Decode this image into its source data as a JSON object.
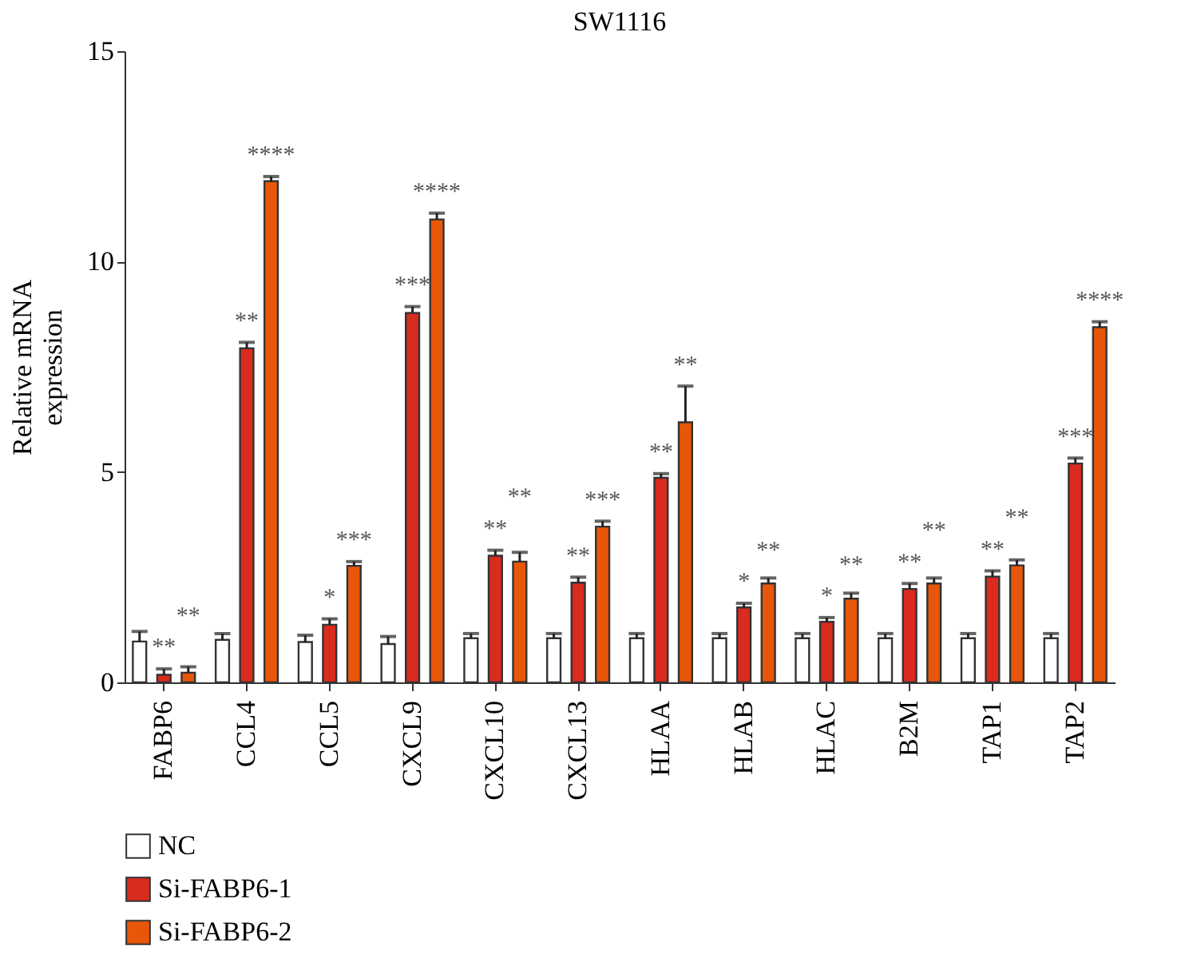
{
  "chart_data": {
    "type": "bar",
    "title": "SW1116",
    "ylabel": "Relative mRNA expression",
    "categories": [
      "FABP6",
      "CCL4",
      "CCL5",
      "CXCL9",
      "CXCL10",
      "CXCL13",
      "HLAA",
      "HLAB",
      "HLAC",
      "B2M",
      "TAP1",
      "TAP2"
    ],
    "series": [
      {
        "name": "NC",
        "color": "#ffffff",
        "values": [
          0.97,
          1.01,
          0.96,
          0.91,
          1.05,
          1.05,
          1.05,
          1.05,
          1.05,
          1.05,
          1.05,
          1.05
        ],
        "errors": [
          0.24,
          0.15,
          0.16,
          0.18,
          0.11,
          0.11,
          0.11,
          0.11,
          0.11,
          0.11,
          0.11,
          0.11
        ]
      },
      {
        "name": "Si-FABP6-1",
        "color": "#d92b1e",
        "values": [
          0.18,
          7.94,
          1.37,
          8.78,
          3.01,
          2.37,
          4.86,
          1.78,
          1.44,
          2.22,
          2.51,
          5.2
        ],
        "errors": [
          0.14,
          0.14,
          0.14,
          0.15,
          0.13,
          0.13,
          0.1,
          0.1,
          0.1,
          0.13,
          0.14,
          0.13
        ],
        "value_labels": [
          "**",
          "**",
          "*",
          "***",
          "**",
          "**",
          "**",
          "*",
          "*",
          "**",
          "**",
          "***"
        ]
      },
      {
        "name": "Si-FABP6-2",
        "color": "#e8560a",
        "values": [
          0.23,
          11.91,
          2.77,
          11.0,
          2.87,
          3.7,
          6.18,
          2.35,
          1.99,
          2.35,
          2.78,
          8.44
        ],
        "errors": [
          0.14,
          0.11,
          0.1,
          0.15,
          0.22,
          0.13,
          0.86,
          0.13,
          0.13,
          0.13,
          0.13,
          0.13
        ],
        "value_labels": [
          "**",
          "****",
          "***",
          "****",
          "**",
          "***",
          "**",
          "**",
          "**",
          "**",
          "**",
          "****"
        ]
      }
    ],
    "ylim": [
      0,
      15
    ],
    "yticks": [
      0,
      5,
      10,
      15
    ],
    "grid": false,
    "legend": "bottom left"
  }
}
